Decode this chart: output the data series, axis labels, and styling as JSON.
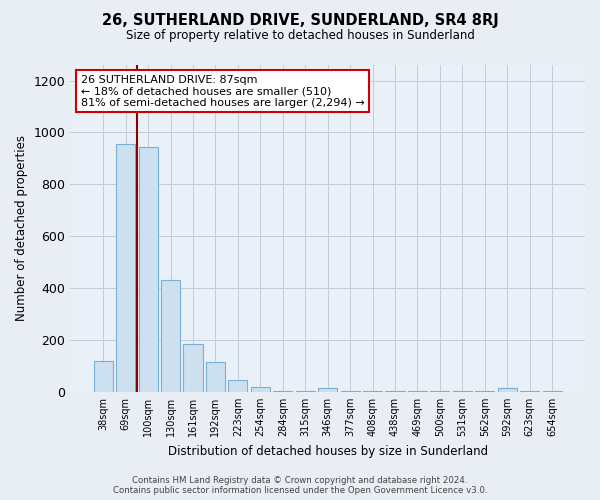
{
  "title": "26, SUTHERLAND DRIVE, SUNDERLAND, SR4 8RJ",
  "subtitle": "Size of property relative to detached houses in Sunderland",
  "xlabel": "Distribution of detached houses by size in Sunderland",
  "ylabel": "Number of detached properties",
  "categories": [
    "38sqm",
    "69sqm",
    "100sqm",
    "130sqm",
    "161sqm",
    "192sqm",
    "223sqm",
    "254sqm",
    "284sqm",
    "315sqm",
    "346sqm",
    "377sqm",
    "408sqm",
    "438sqm",
    "469sqm",
    "500sqm",
    "531sqm",
    "562sqm",
    "592sqm",
    "623sqm",
    "654sqm"
  ],
  "values": [
    120,
    955,
    945,
    430,
    185,
    115,
    47,
    18,
    5,
    3,
    17,
    3,
    3,
    2,
    2,
    2,
    2,
    2,
    15,
    2,
    2
  ],
  "bar_facecolor": "#cce0f0",
  "bar_edgecolor": "#7ab0d4",
  "vline_x_idx": 1,
  "vline_color": "#8b0000",
  "ylim": [
    0,
    1260
  ],
  "yticks": [
    0,
    200,
    400,
    600,
    800,
    1000,
    1200
  ],
  "ann_title": "26 SUTHERLAND DRIVE: 87sqm",
  "ann_line1": "← 18% of detached houses are smaller (510)",
  "ann_line2": "81% of semi-detached houses are larger (2,294) →",
  "footer1": "Contains HM Land Registry data © Crown copyright and database right 2024.",
  "footer2": "Contains public sector information licensed under the Open Government Licence v3.0.",
  "bg_color": "#e8eef4",
  "plot_bg_color": "#eaf0f8",
  "grid_color": "#c0cdd8"
}
